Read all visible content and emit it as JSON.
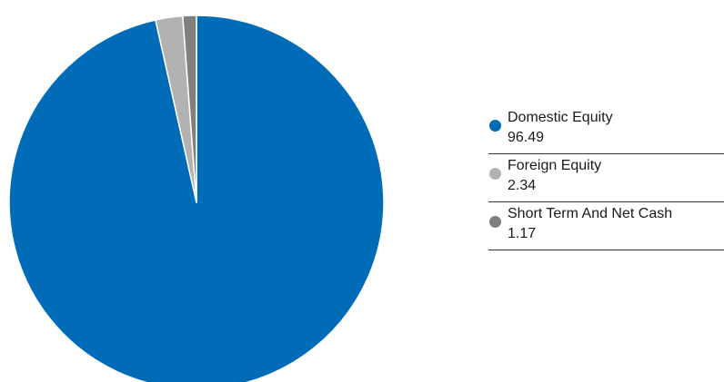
{
  "chart_data": {
    "type": "pie",
    "series": [
      {
        "name": "Domestic Equity",
        "value": 96.49,
        "value_label": "96.49",
        "color": "#006bb6"
      },
      {
        "name": "Foreign Equity",
        "value": 2.34,
        "value_label": "2.34",
        "color": "#b2b2b2"
      },
      {
        "name": "Short Term And Net Cash",
        "value": 1.17,
        "value_label": "1.17",
        "color": "#808080"
      }
    ],
    "legend_position": "right",
    "start_angle": "12 o'clock",
    "direction": "clockwise"
  }
}
